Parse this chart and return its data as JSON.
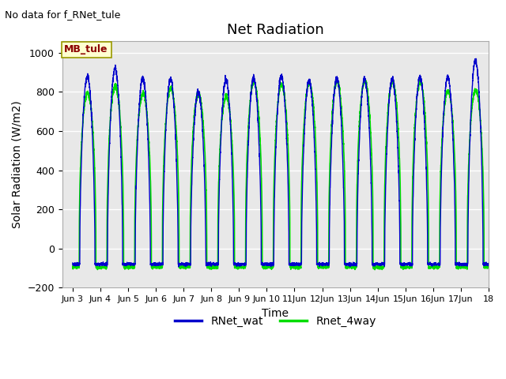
{
  "title": "Net Radiation",
  "xlabel": "Time",
  "ylabel": "Solar Radiation (W/m2)",
  "top_left_text": "No data for f_RNet_tule",
  "legend_label_text": "MB_tule",
  "legend_label_color": "#8B0000",
  "legend_label_bg": "#FFFFD0",
  "ylim": [
    -200,
    1060
  ],
  "yticks": [
    -200,
    0,
    200,
    400,
    600,
    800,
    1000
  ],
  "line1_label": "RNet_wat",
  "line1_color": "#0000CC",
  "line2_label": "Rnet_4way",
  "line2_color": "#00DD00",
  "background_color": "#E8E8E8",
  "fig_bg": "#FFFFFF",
  "grid_color": "#FFFFFF",
  "xlim_start": 2.62,
  "xlim_end": 17.7,
  "n_days": 15,
  "points_per_day": 288,
  "daily_peaks_wat": [
    880,
    920,
    870,
    865,
    800,
    860,
    870,
    880,
    855,
    870,
    865,
    865,
    875,
    875,
    960
  ],
  "daily_peaks_4way": [
    795,
    830,
    790,
    820,
    790,
    775,
    850,
    835,
    845,
    855,
    855,
    850,
    850,
    805,
    810
  ],
  "night_val_wat": -80,
  "night_val_4way": -95,
  "x_tick_labels": [
    "Jun 3",
    "Jun 4",
    "Jun 5",
    "Jun 6",
    "Jun 7",
    "Jun 8",
    "Jun 9",
    "Jun 10",
    "11Jun",
    "12Jun",
    "13Jun",
    "14Jun",
    "15Jun",
    "16Jun",
    "17Jun",
    "18"
  ],
  "x_tick_positions": [
    3,
    4,
    5,
    6,
    7,
    8,
    9,
    10,
    11,
    12,
    13,
    14,
    15,
    16,
    17,
    18
  ]
}
